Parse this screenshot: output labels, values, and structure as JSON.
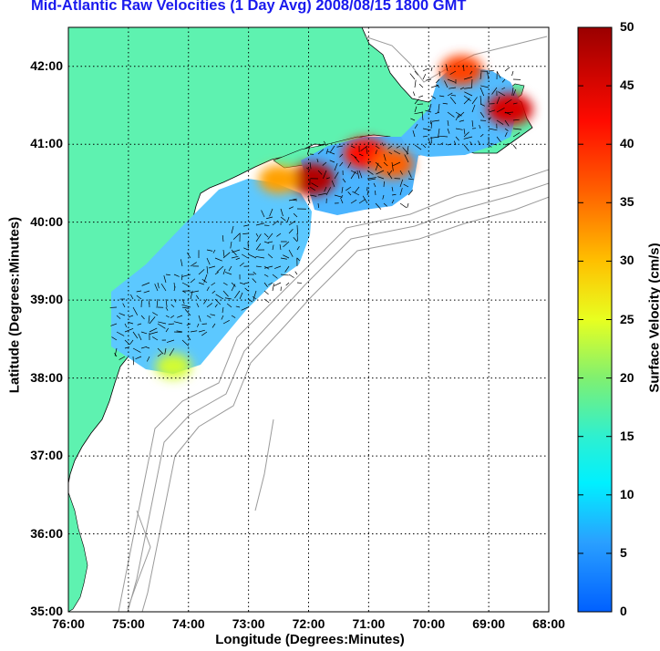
{
  "title": "Mid-Atlantic Raw Velocities (1 Day Avg) 2008/08/15 1800 GMT",
  "xlabel": "Longitude (Degrees:Minutes)",
  "ylabel": "Latitude (Degrees:Minutes)",
  "x_ticks": [
    "76:00",
    "75:00",
    "74:00",
    "73:00",
    "72:00",
    "71:00",
    "70:00",
    "69:00",
    "68:00"
  ],
  "y_ticks": [
    "42:00",
    "41:00",
    "40:00",
    "39:00",
    "38:00",
    "37:00",
    "36:00",
    "35:00"
  ],
  "colorbar": {
    "label": "Surface Velocity (cm/s)",
    "ticks": [
      "50",
      "45",
      "40",
      "35",
      "30",
      "25",
      "20",
      "15",
      "10",
      "5",
      "0"
    ],
    "range": [
      0,
      50
    ]
  },
  "colors": {
    "land": "#5ef2b0",
    "title": "#1a1aee",
    "contour": "#9a9a9a"
  },
  "chart_data": {
    "type": "heatmap",
    "title": "Mid-Atlantic Raw Velocities (1 Day Avg) 2008/08/15 1800 GMT",
    "xlabel": "Longitude (Degrees:Minutes)",
    "ylabel": "Latitude (Degrees:Minutes)",
    "xlim": [
      -76,
      -68
    ],
    "ylim": [
      35,
      42.5
    ],
    "grid": true,
    "colorbar_range": [
      0,
      50
    ],
    "colorbar_label": "Surface Velocity (cm/s)",
    "hotspots": [
      {
        "lon": -71.95,
        "lat": 40.55,
        "speed": 48
      },
      {
        "lon": -71.05,
        "lat": 40.88,
        "speed": 42
      },
      {
        "lon": -70.6,
        "lat": 40.75,
        "speed": 36
      },
      {
        "lon": -68.65,
        "lat": 41.45,
        "speed": 45
      },
      {
        "lon": -69.45,
        "lat": 41.95,
        "speed": 38
      },
      {
        "lon": -72.5,
        "lat": 40.55,
        "speed": 32
      },
      {
        "lon": -74.25,
        "lat": 38.15,
        "speed": 24
      }
    ]
  }
}
